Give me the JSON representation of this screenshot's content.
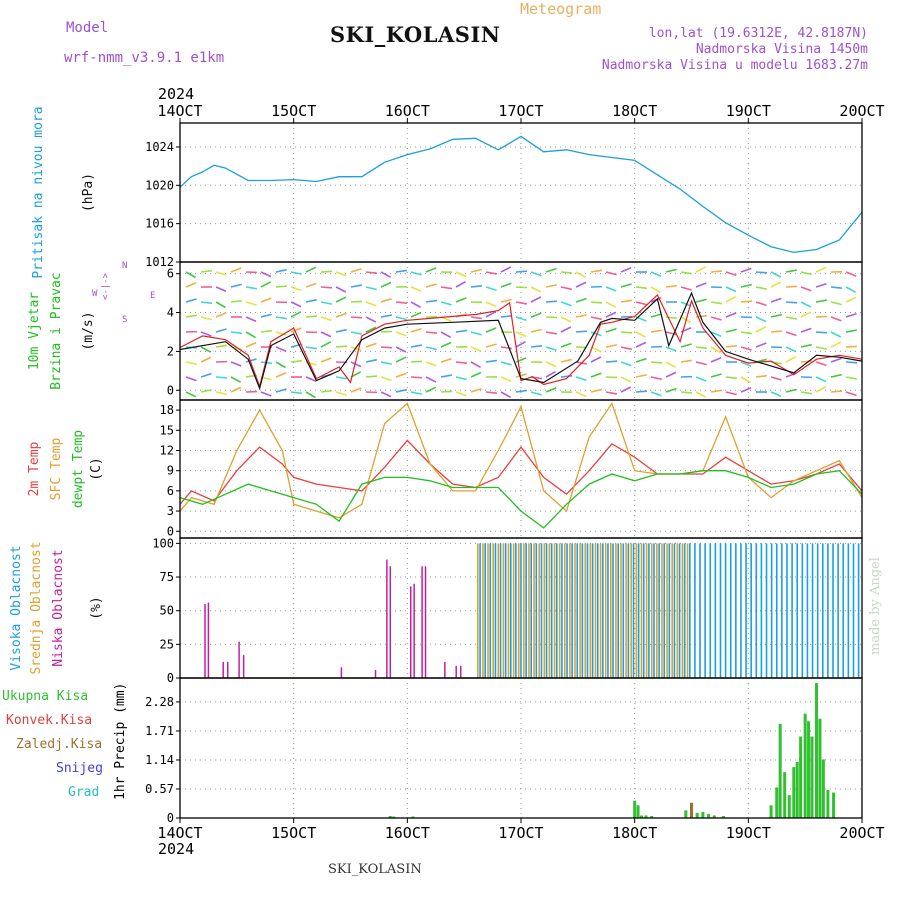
{
  "header": {
    "model_label": "Model",
    "model_name": "wrf-nmm_v3.9.1 e1km",
    "title": "SKI_KOLASIN",
    "meteogram": "Meteogram",
    "coords": "lon,lat (19.6312E, 42.8187N)",
    "elevation": "Nadmorska Visina 1450m",
    "elevation_model": "Nadmorska Visina u modelu 1683.27m"
  },
  "footer": {
    "station": "SKI_KOLASIN",
    "credit": "made by Angel"
  },
  "colors": {
    "pressure": "#1a9fe0",
    "wind_speed": "#e02020",
    "wind_gust": "#111111",
    "temp2m": "#e84040",
    "sfc_temp": "#e0a030",
    "dewpt": "#20c020",
    "cloud_high": "#1a9fe0",
    "cloud_mid": "#e0a030",
    "cloud_low": "#c020a0",
    "precip_total": "#30c030",
    "precip_conv": "#e04040",
    "precip_frz": "#a07030",
    "snow": "#4040e0",
    "hail": "#20c0c0"
  },
  "chart_data": {
    "type": "line",
    "time_axis": {
      "year_label": "2024",
      "ticks": [
        "14OCT",
        "15OCT",
        "16OCT",
        "17OCT",
        "18OCT",
        "19OCT",
        "20OCT"
      ],
      "xlim": [
        0,
        6
      ]
    },
    "panels": [
      {
        "id": "pressure",
        "label_main": "Pritisak na nivou mora",
        "unit": "(hPa)",
        "ylim": [
          1012,
          1026.5
        ],
        "yticks": [
          "1012",
          "1016",
          "1020",
          "1024"
        ],
        "series": [
          {
            "key": "pressure",
            "x": [
              0,
              0.1,
              0.2,
              0.3,
              0.4,
              0.6,
              0.8,
              1.0,
              1.2,
              1.4,
              1.6,
              1.8,
              2.0,
              2.2,
              2.4,
              2.6,
              2.8,
              3.0,
              3.2,
              3.4,
              3.6,
              3.8,
              4.0,
              4.2,
              4.4,
              4.6,
              4.8,
              5.0,
              5.2,
              5.4,
              5.6,
              5.8,
              6.0
            ],
            "y": [
              1019.8,
              1020.9,
              1021.4,
              1022.1,
              1021.8,
              1020.5,
              1020.5,
              1020.6,
              1020.4,
              1020.9,
              1020.9,
              1022.4,
              1023.2,
              1023.8,
              1024.8,
              1024.9,
              1023.7,
              1025.1,
              1023.5,
              1023.7,
              1023.2,
              1022.9,
              1022.6,
              1021.1,
              1019.6,
              1017.8,
              1016.1,
              1014.8,
              1013.6,
              1013.0,
              1013.3,
              1014.3,
              1017.2
            ]
          }
        ]
      },
      {
        "id": "wind",
        "label_main": "10m Vjetar",
        "label_sub": "Brzina i Pravac",
        "unit": "(m/s)",
        "compass": [
          "W",
          "<-|->",
          "E",
          "N",
          "S"
        ],
        "ylim": [
          -0.5,
          6.6
        ],
        "yticks": [
          "0",
          "2",
          "4",
          "6"
        ],
        "series": [
          {
            "key": "wind_speed",
            "x": [
              0,
              0.2,
              0.4,
              0.6,
              0.7,
              0.8,
              1.0,
              1.2,
              1.4,
              1.5,
              1.6,
              1.8,
              2.0,
              2.2,
              2.4,
              2.6,
              2.8,
              2.9,
              3.0,
              3.1,
              3.2,
              3.4,
              3.6,
              3.7,
              3.8,
              4.0,
              4.2,
              4.4,
              4.5,
              4.6,
              4.8,
              5.0,
              5.2,
              5.4,
              5.6,
              5.8,
              6.0
            ],
            "y": [
              2.2,
              2.8,
              2.6,
              1.8,
              0.2,
              2.5,
              3.2,
              0.6,
              1.2,
              0.4,
              2.8,
              3.4,
              3.6,
              3.7,
              3.8,
              3.9,
              4.1,
              4.5,
              0.5,
              0.7,
              0.3,
              0.6,
              1.8,
              3.4,
              3.5,
              3.8,
              4.9,
              2.5,
              4.6,
              3.2,
              1.8,
              1.4,
              1.5,
              0.8,
              1.6,
              1.8,
              1.6
            ]
          },
          {
            "key": "wind_gust",
            "x": [
              0,
              0.4,
              0.6,
              0.7,
              0.8,
              1.0,
              1.2,
              1.4,
              1.6,
              1.8,
              2.0,
              2.4,
              2.8,
              3.0,
              3.2,
              3.5,
              3.7,
              3.8,
              4.0,
              4.2,
              4.3,
              4.5,
              4.6,
              4.8,
              5.0,
              5.4,
              5.6,
              5.8,
              6.0
            ],
            "y": [
              2.1,
              2.5,
              1.6,
              0.1,
              2.3,
              2.9,
              0.5,
              1.0,
              2.6,
              3.2,
              3.4,
              3.5,
              3.6,
              0.6,
              0.4,
              1.5,
              3.5,
              3.7,
              3.6,
              4.7,
              2.3,
              5.0,
              3.5,
              2.0,
              1.6,
              0.9,
              1.8,
              1.7,
              1.5
            ]
          }
        ]
      },
      {
        "id": "temp",
        "label_main": "2m Temp",
        "label_sub": "SFC Temp",
        "label_sub2": "dewpt Temp",
        "unit": "(C)",
        "ylim": [
          -1,
          19.5
        ],
        "yticks": [
          "0",
          "3",
          "6",
          "9",
          "12",
          "15",
          "18"
        ],
        "series": [
          {
            "key": "temp2m",
            "x": [
              0,
              0.1,
              0.3,
              0.5,
              0.7,
              0.9,
              1.0,
              1.2,
              1.4,
              1.6,
              1.8,
              2.0,
              2.2,
              2.4,
              2.6,
              2.8,
              3.0,
              3.2,
              3.4,
              3.6,
              3.8,
              4.0,
              4.2,
              4.4,
              4.6,
              4.8,
              5.0,
              5.2,
              5.4,
              5.6,
              5.8,
              6.0
            ],
            "y": [
              4,
              6,
              4.5,
              9,
              12.5,
              10,
              8,
              7,
              6.5,
              6,
              9.5,
              13.5,
              10,
              7,
              6.5,
              8,
              12.5,
              8,
              5.5,
              9,
              13,
              11,
              8.5,
              8.5,
              8.5,
              11,
              9,
              7,
              7.5,
              8.5,
              10,
              6
            ]
          },
          {
            "key": "sfc_temp",
            "x": [
              0,
              0.1,
              0.3,
              0.5,
              0.7,
              0.9,
              1.0,
              1.2,
              1.4,
              1.6,
              1.8,
              2.0,
              2.2,
              2.4,
              2.6,
              2.8,
              3.0,
              3.2,
              3.4,
              3.6,
              3.8,
              4.0,
              4.2,
              4.4,
              4.6,
              4.8,
              5.0,
              5.2,
              5.4,
              5.6,
              5.8,
              6.0
            ],
            "y": [
              3,
              5,
              4,
              12,
              18,
              12,
              4,
              3,
              2,
              4,
              16,
              19,
              10,
              6,
              6,
              12,
              18.5,
              6,
              3,
              14,
              19,
              9,
              8.5,
              8.5,
              9,
              17,
              8,
              5,
              7.5,
              9,
              10.5,
              5
            ]
          },
          {
            "key": "dewpt",
            "x": [
              0,
              0.2,
              0.4,
              0.6,
              0.8,
              1.0,
              1.2,
              1.4,
              1.6,
              1.8,
              2.0,
              2.2,
              2.4,
              2.6,
              2.8,
              3.0,
              3.2,
              3.4,
              3.6,
              3.8,
              4.0,
              4.2,
              4.4,
              4.6,
              4.8,
              5.0,
              5.2,
              5.4,
              5.6,
              5.8,
              6.0
            ],
            "y": [
              5,
              4,
              5.5,
              7,
              6,
              5,
              4,
              1.5,
              7,
              8,
              8,
              7.5,
              6.5,
              6.5,
              6.5,
              3,
              0.5,
              4,
              7,
              8.5,
              7.5,
              8.5,
              8.5,
              9,
              9,
              8,
              6.5,
              7,
              8.5,
              9,
              5.5
            ]
          }
        ]
      },
      {
        "id": "clouds",
        "label_main": "Visoka Oblacnost",
        "label_sub": "Srednja Oblacnost",
        "label_sub2": "Niska Oblacnost",
        "unit": "(%)",
        "ylim": [
          0,
          104
        ],
        "yticks": [
          "0",
          "25",
          "50",
          "75",
          "100"
        ],
        "low_bars": {
          "x": [
            0.22,
            0.25,
            0.38,
            0.42,
            0.52,
            0.56,
            1.42,
            1.72,
            1.82,
            1.85,
            2.03,
            2.06,
            2.13,
            2.16,
            2.33,
            2.43,
            2.47
          ],
          "y": [
            55,
            56,
            12,
            12,
            27,
            17,
            8,
            6,
            88,
            83,
            68,
            70,
            83,
            83,
            12,
            9,
            9
          ]
        },
        "high_start": 2.62,
        "high_end": 6.0,
        "mid_start": 2.62,
        "mid_end": 4.5
      },
      {
        "id": "precip",
        "label_main": "1hr Precip",
        "unit": "(mm)",
        "legend": [
          "Ukupna Kisa",
          "Konvek.Kisa",
          "Zaledj.Kisa",
          "Snijeg",
          "Grad"
        ],
        "ylim": [
          0,
          2.75
        ],
        "yticks": [
          "0",
          "0.57",
          "1.14",
          "1.71",
          "2.28"
        ],
        "bars": {
          "x": [
            1.85,
            1.88,
            2.05,
            4.0,
            4.03,
            4.06,
            4.1,
            4.15,
            4.45,
            4.5,
            4.55,
            4.6,
            4.65,
            4.7,
            4.78,
            5.2,
            5.25,
            5.28,
            5.32,
            5.36,
            5.4,
            5.43,
            5.46,
            5.5,
            5.53,
            5.56,
            5.6,
            5.63,
            5.66,
            5.7,
            5.75
          ],
          "y": [
            0.04,
            0.03,
            0.03,
            0.34,
            0.25,
            0.05,
            0.05,
            0.04,
            0.15,
            0.1,
            0.1,
            0.12,
            0.08,
            0.05,
            0.04,
            0.25,
            0.6,
            1.85,
            0.9,
            0.45,
            1.0,
            1.1,
            1.6,
            2.05,
            1.9,
            1.6,
            2.65,
            1.95,
            1.15,
            0.55,
            0.5
          ]
        },
        "frz_bars": {
          "x": [
            4.5
          ],
          "y": [
            0.3
          ]
        }
      }
    ]
  }
}
